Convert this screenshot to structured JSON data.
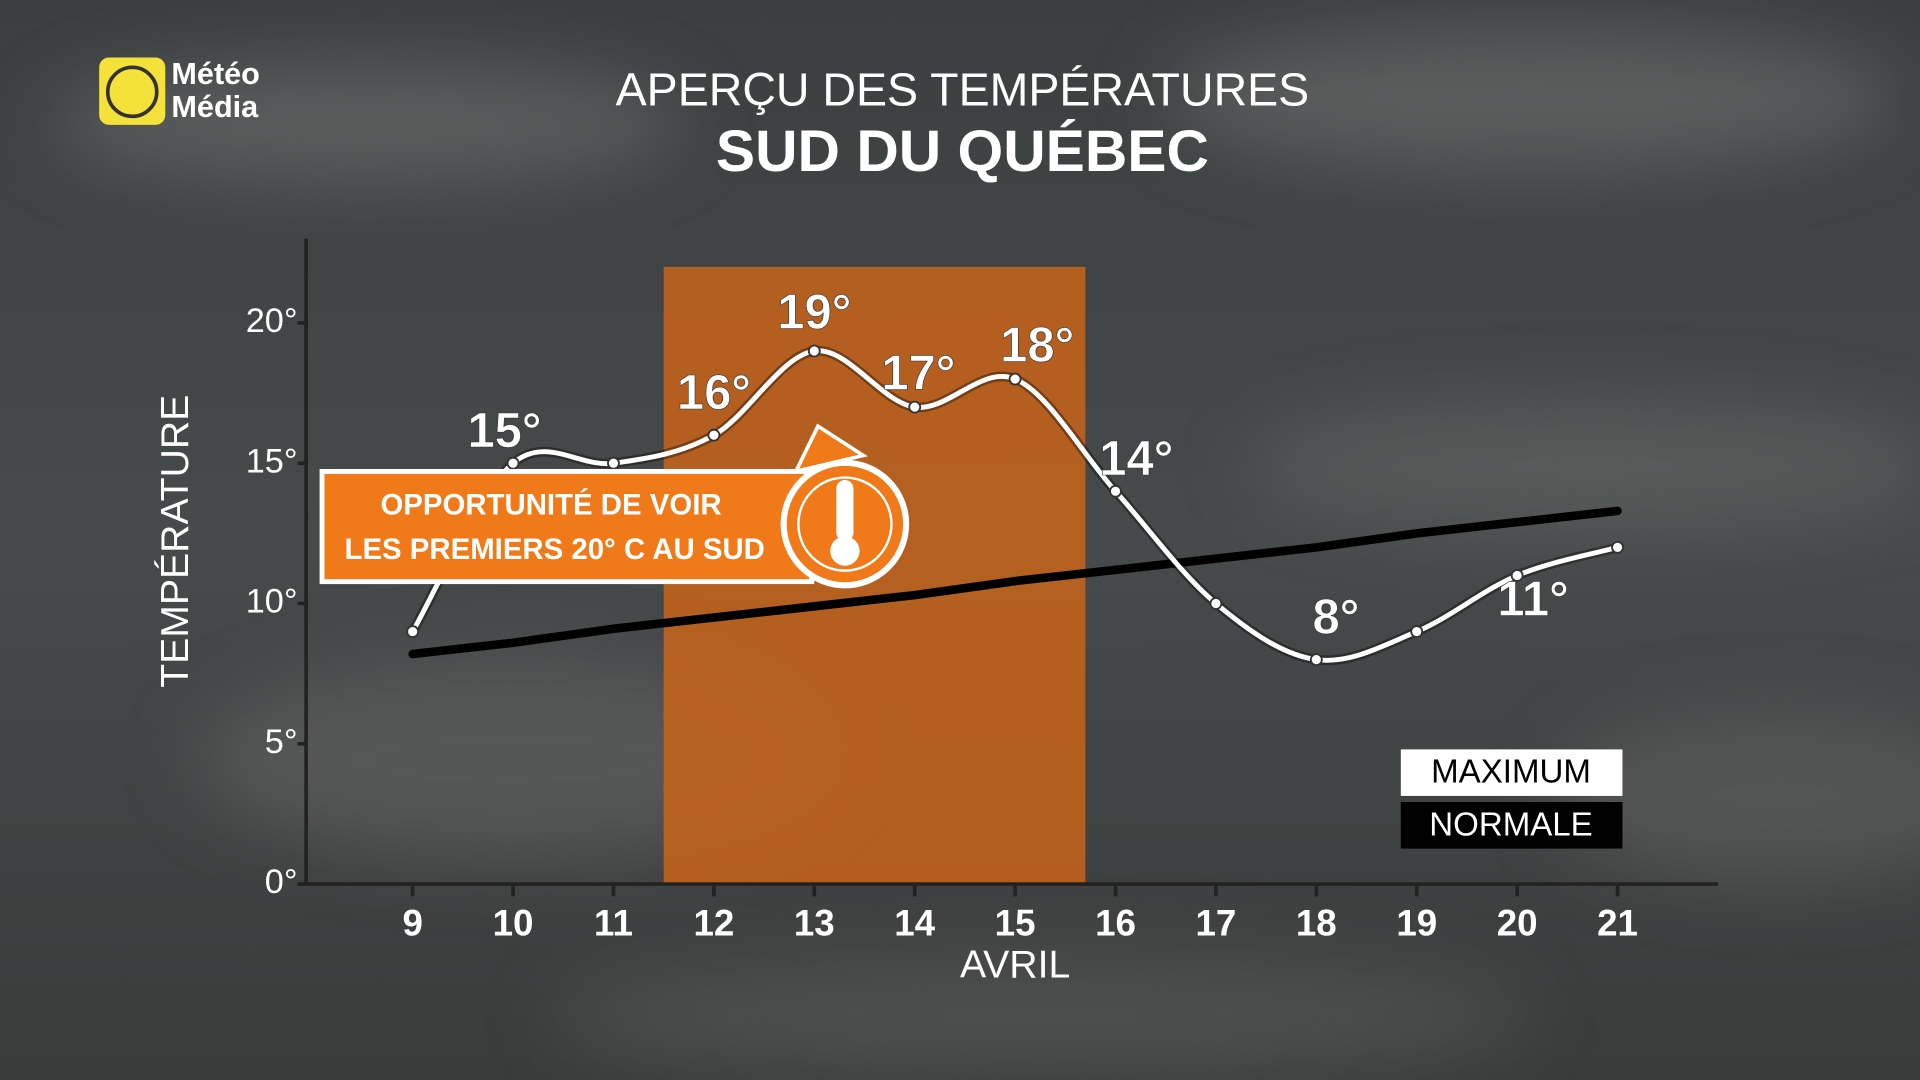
{
  "logo": {
    "line1": "Météo",
    "line2": "Média"
  },
  "chart_data": {
    "type": "line",
    "title": "APERÇU DES TEMPÉRATURES",
    "subtitle": "SUD DU QUÉBEC",
    "y_label": "TEMPÉRATURE",
    "x_label": "AVRIL",
    "x": [
      9,
      10,
      11,
      12,
      13,
      14,
      15,
      16,
      17,
      18,
      19,
      20,
      21
    ],
    "xticks": [
      9,
      10,
      11,
      12,
      13,
      14,
      15,
      16,
      17,
      18,
      19,
      20,
      21
    ],
    "xlim": [
      8,
      22
    ],
    "ylim": [
      0,
      23
    ],
    "yticks": [
      {
        "value": 0,
        "label": "0°"
      },
      {
        "value": 5,
        "label": "5°"
      },
      {
        "value": 10,
        "label": "10°"
      },
      {
        "value": 15,
        "label": "15°"
      },
      {
        "value": 20,
        "label": "20°"
      }
    ],
    "highlight": {
      "x_range": [
        11.5,
        15.7
      ],
      "top": 22,
      "color": "#c8641a"
    },
    "series": [
      {
        "name": "MAXIMUM",
        "color": "#ffffff",
        "values": [
          9,
          15,
          15,
          16,
          19,
          17,
          18,
          14,
          10,
          8,
          9,
          11,
          12
        ],
        "value_labels": [
          null,
          "15°",
          null,
          "16°",
          "19°",
          "17°",
          "18°",
          "14°",
          null,
          "8°",
          null,
          "11°",
          null
        ]
      },
      {
        "name": "NORMALE",
        "color": "#000000",
        "values": [
          8.2,
          8.6,
          9.1,
          9.5,
          9.9,
          10.3,
          10.8,
          11.2,
          11.6,
          12.0,
          12.5,
          12.9,
          13.3
        ]
      }
    ],
    "legend": "lower right",
    "callout": {
      "line1": "OPPORTUNITÉ DE VOIR",
      "line2": "LES PREMIERS 20° C AU SUD"
    }
  }
}
